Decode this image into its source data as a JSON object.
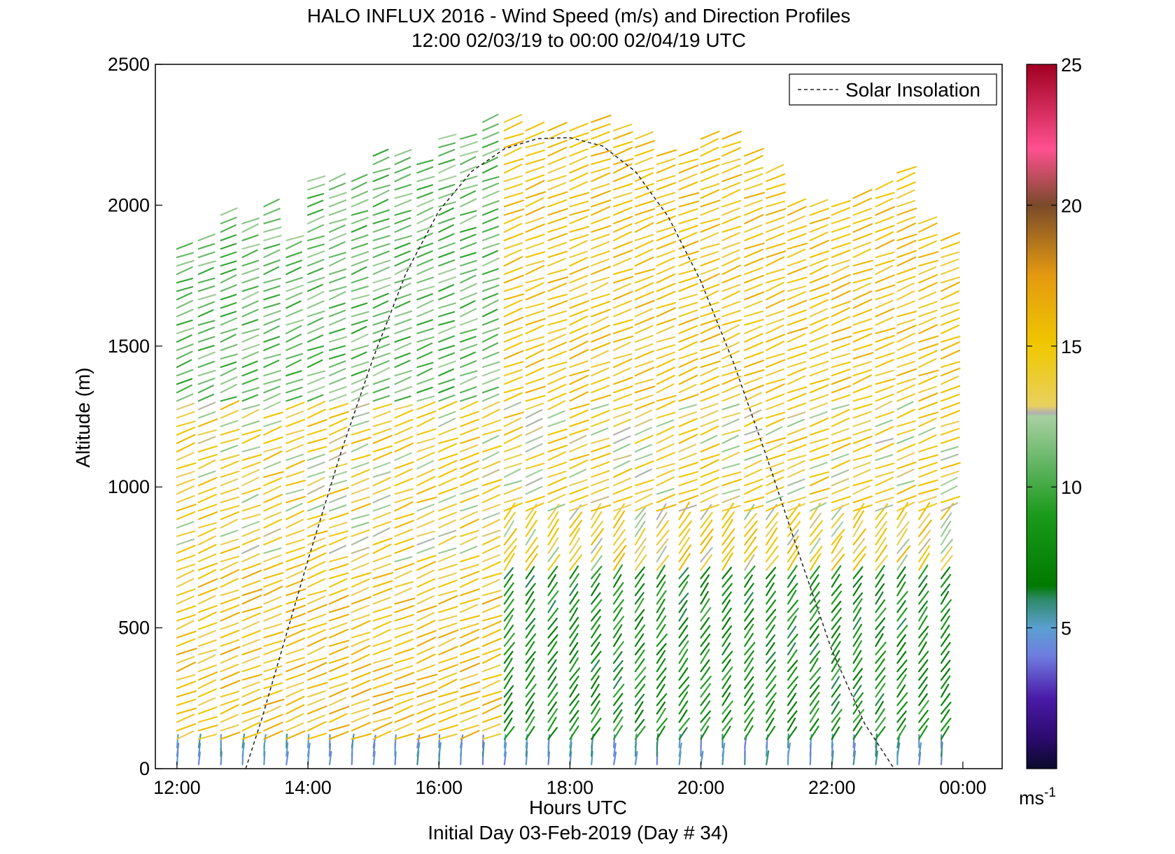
{
  "chart_data": {
    "type": "quiver",
    "title": "HALO INFLUX 2016 - Wind Speed (m/s) and Direction Profiles",
    "subtitle": "12:00 02/03/19 to 00:00 02/04/19  UTC",
    "xlabel": "Hours UTC",
    "xlabel_secondary": "Initial Day 03-Feb-2019 (Day # 34)",
    "ylabel": "Altitude (m)",
    "xlim": [
      11.67,
      24.6
    ],
    "ylim": [
      0,
      2500
    ],
    "x_ticks": [
      {
        "value": 12,
        "label": "12:00"
      },
      {
        "value": 14,
        "label": "14:00"
      },
      {
        "value": 16,
        "label": "16:00"
      },
      {
        "value": 18,
        "label": "18:00"
      },
      {
        "value": 20,
        "label": "20:00"
      },
      {
        "value": 22,
        "label": "22:00"
      },
      {
        "value": 24,
        "label": "00:00"
      }
    ],
    "y_ticks": [
      0,
      500,
      1000,
      1500,
      2000,
      2500
    ],
    "grid": false,
    "legend": {
      "position": "top-right",
      "entries": [
        {
          "label": "Solar Insolation",
          "style": "dashed",
          "color": "#000000"
        }
      ]
    },
    "colorbar": {
      "range": [
        0,
        25
      ],
      "ticks": [
        5,
        10,
        15,
        20,
        25
      ],
      "unit_label": "ms",
      "unit_exponent": "-1"
    },
    "profile_times_hr": [
      12.0,
      12.33,
      12.67,
      13.0,
      13.33,
      13.67,
      14.0,
      14.33,
      14.67,
      15.0,
      15.33,
      15.67,
      16.0,
      16.33,
      16.67,
      17.0,
      17.33,
      17.67,
      18.0,
      18.33,
      18.67,
      19.0,
      19.33,
      19.67,
      20.0,
      20.33,
      20.67,
      21.0,
      21.33,
      21.67,
      22.0,
      22.33,
      22.67,
      23.0,
      23.33,
      23.67
    ],
    "profile_top_altitude_m": [
      1850,
      1900,
      1990,
      1950,
      2000,
      1900,
      2100,
      2110,
      2110,
      2180,
      2180,
      2150,
      2250,
      2250,
      2320,
      2300,
      2280,
      2280,
      2290,
      2320,
      2280,
      2250,
      2200,
      2180,
      2250,
      2250,
      2180,
      2120,
      2000,
      2000,
      2020,
      2050,
      2080,
      2120,
      1950,
      1900
    ],
    "wind_speed_samples_ms": {
      "near_surface_0_100m": 4,
      "low_levels_100_700m_morning": 15,
      "low_levels_100_700m_afternoon": 8,
      "mid_levels_700_1300m": 14,
      "upper_levels_1300_2300m_morning": 11,
      "upper_levels_1300_2300m_afternoon": 15
    },
    "solar_insolation_curve": {
      "x_hr": [
        13.05,
        13.3,
        13.6,
        14.0,
        14.5,
        15.0,
        15.5,
        16.0,
        16.5,
        17.0,
        17.5,
        18.0,
        18.5,
        19.0,
        19.5,
        20.0,
        20.5,
        21.0,
        21.5,
        22.0,
        22.5,
        22.95
      ],
      "y_m": [
        0,
        180,
        420,
        740,
        1120,
        1460,
        1760,
        1980,
        2120,
        2200,
        2236,
        2240,
        2210,
        2120,
        1960,
        1730,
        1440,
        1110,
        760,
        420,
        160,
        0
      ]
    }
  }
}
